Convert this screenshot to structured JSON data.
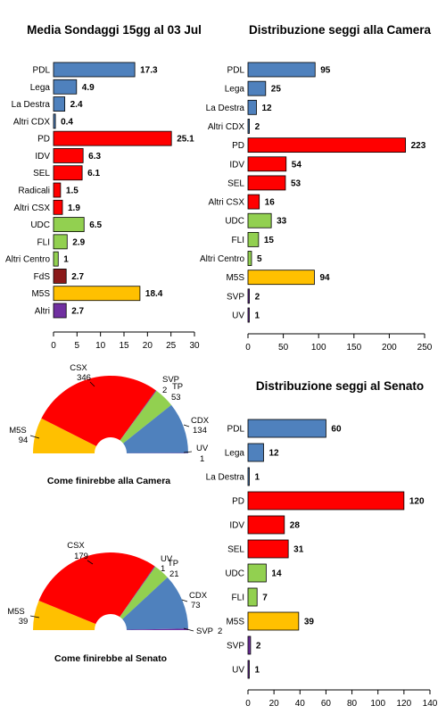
{
  "titles": {
    "polls": "Media Sondaggi 15gg al 03 Jul",
    "camera": "Distribuzione seggi alla Camera",
    "senato": "Distribuzione seggi al Senato"
  },
  "captions": {
    "camera": "Come finirebbe alla Camera",
    "senato": "Come finirebbe al Senato"
  },
  "colors": {
    "blue": "#4f81bd",
    "red": "#ff0000",
    "green": "#92d050",
    "darkred": "#8b1a1a",
    "gold": "#ffc000",
    "purple": "#7030a0"
  },
  "chart_data": [
    {
      "type": "bar",
      "orientation": "horizontal",
      "title": "Media Sondaggi 15gg al 03 Jul",
      "categories": [
        "PDL",
        "Lega",
        "La Destra",
        "Altri CDX",
        "PD",
        "IDV",
        "SEL",
        "Radicali",
        "Altri CSX",
        "UDC",
        "FLI",
        "Altri Centro",
        "FdS",
        "M5S",
        "Altri"
      ],
      "values": [
        17.3,
        4.9,
        2.4,
        0.4,
        25.1,
        6.3,
        6.1,
        1.5,
        1.9,
        6.5,
        2.9,
        1,
        2.7,
        18.4,
        2.7
      ],
      "labels": [
        "17.3",
        "4.9",
        "2.4",
        "0.4",
        "25.1",
        "6.3",
        "6.1",
        "1.5",
        "1.9",
        "6.5",
        "2.9",
        "1",
        "2.7",
        "18.4",
        "2.7"
      ],
      "colors": [
        "#4f81bd",
        "#4f81bd",
        "#4f81bd",
        "#4f81bd",
        "#ff0000",
        "#ff0000",
        "#ff0000",
        "#ff0000",
        "#ff0000",
        "#92d050",
        "#92d050",
        "#92d050",
        "#8b1a1a",
        "#ffc000",
        "#7030a0"
      ],
      "xlim": [
        0,
        30
      ],
      "xticks": [
        "0",
        "5",
        "10",
        "15",
        "20",
        "25",
        "30"
      ],
      "grid": false,
      "legend": "none"
    },
    {
      "type": "bar",
      "orientation": "horizontal",
      "title": "Distribuzione seggi alla Camera",
      "categories": [
        "PDL",
        "Lega",
        "La Destra",
        "Altri CDX",
        "PD",
        "IDV",
        "SEL",
        "Altri CSX",
        "UDC",
        "FLI",
        "Altri Centro",
        "M5S",
        "SVP",
        "UV"
      ],
      "values": [
        95,
        25,
        12,
        2,
        223,
        54,
        53,
        16,
        33,
        15,
        5,
        94,
        2,
        1
      ],
      "labels": [
        "95",
        "25",
        "12",
        "2",
        "223",
        "54",
        "53",
        "16",
        "33",
        "15",
        "5",
        "94",
        "2",
        "1"
      ],
      "colors": [
        "#4f81bd",
        "#4f81bd",
        "#4f81bd",
        "#4f81bd",
        "#ff0000",
        "#ff0000",
        "#ff0000",
        "#ff0000",
        "#92d050",
        "#92d050",
        "#92d050",
        "#ffc000",
        "#7030a0",
        "#7030a0"
      ],
      "xlim": [
        0,
        250
      ],
      "xticks": [
        "0",
        "50",
        "100",
        "150",
        "200",
        "250"
      ],
      "grid": false,
      "legend": "none"
    },
    {
      "type": "bar",
      "orientation": "horizontal",
      "title": "Distribuzione seggi al Senato",
      "categories": [
        "PDL",
        "Lega",
        "La Destra",
        "PD",
        "IDV",
        "SEL",
        "UDC",
        "FLI",
        "M5S",
        "SVP",
        "UV"
      ],
      "values": [
        60,
        12,
        1,
        120,
        28,
        31,
        14,
        7,
        39,
        2,
        1
      ],
      "labels": [
        "60",
        "12",
        "1",
        "120",
        "28",
        "31",
        "14",
        "7",
        "39",
        "2",
        "1"
      ],
      "colors": [
        "#4f81bd",
        "#4f81bd",
        "#4f81bd",
        "#ff0000",
        "#ff0000",
        "#ff0000",
        "#92d050",
        "#92d050",
        "#ffc000",
        "#7030a0",
        "#7030a0"
      ],
      "xlim": [
        0,
        140
      ],
      "xticks": [
        "0",
        "20",
        "40",
        "60",
        "80",
        "100",
        "120",
        "140"
      ],
      "grid": false,
      "legend": "none"
    },
    {
      "type": "pie",
      "subtype": "semicircle",
      "caption": "Come finirebbe alla Camera",
      "slices": [
        {
          "name": "M5S",
          "value": 94,
          "color": "#ffc000"
        },
        {
          "name": "CSX",
          "value": 346,
          "color": "#ff0000"
        },
        {
          "name": "SVP",
          "value": 2,
          "color": "#7030a0"
        },
        {
          "name": "TP",
          "value": 53,
          "color": "#92d050"
        },
        {
          "name": "CDX",
          "value": 134,
          "color": "#4f81bd"
        },
        {
          "name": "UV",
          "value": 1,
          "color": "#7030a0"
        }
      ]
    },
    {
      "type": "pie",
      "subtype": "semicircle",
      "caption": "Come finirebbe al Senato",
      "slices": [
        {
          "name": "M5S",
          "value": 39,
          "color": "#ffc000"
        },
        {
          "name": "CSX",
          "value": 179,
          "color": "#ff0000"
        },
        {
          "name": "UV",
          "value": 1,
          "color": "#7030a0"
        },
        {
          "name": "TP",
          "value": 21,
          "color": "#92d050"
        },
        {
          "name": "CDX",
          "value": 73,
          "color": "#4f81bd"
        },
        {
          "name": "SVP",
          "value": 2,
          "color": "#7030a0"
        }
      ]
    }
  ]
}
